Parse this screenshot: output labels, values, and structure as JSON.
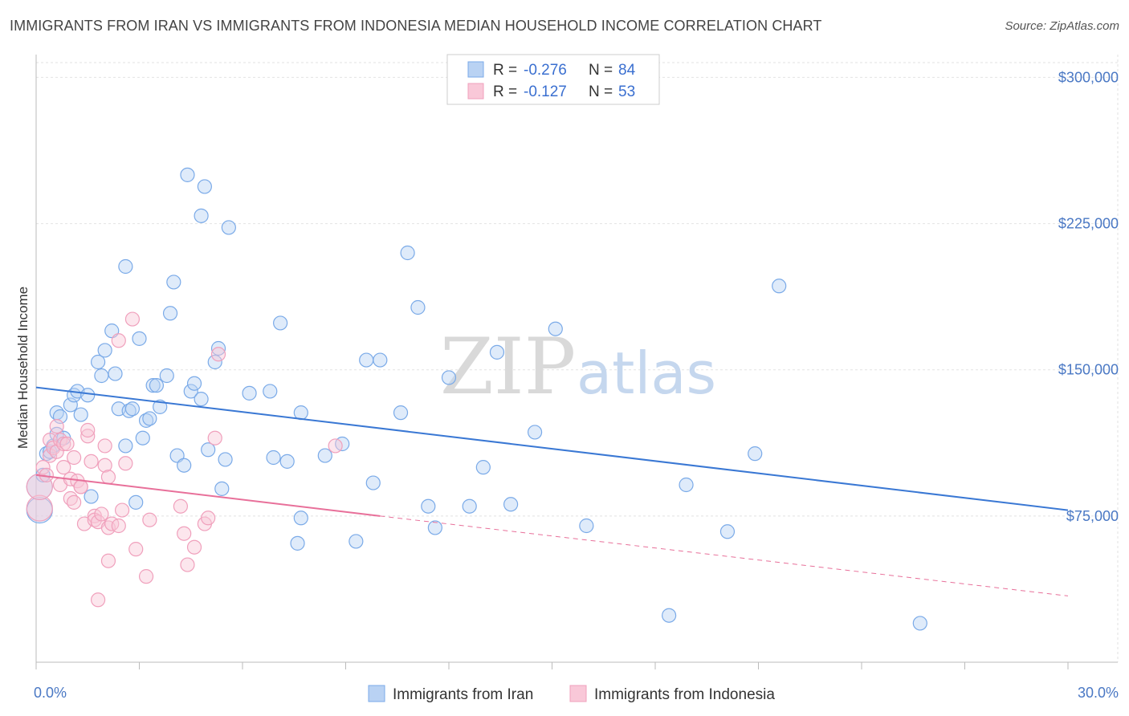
{
  "title": "IMMIGRANTS FROM IRAN VS IMMIGRANTS FROM INDONESIA MEDIAN HOUSEHOLD INCOME CORRELATION CHART",
  "source": "Source: ZipAtlas.com",
  "watermark": {
    "zip": "ZIP",
    "atlas": "atlas"
  },
  "legend": {
    "rows": [
      {
        "r_label": "R =",
        "r_value": "-0.276",
        "n_label": "N =",
        "n_value": "84"
      },
      {
        "r_label": "R =",
        "r_value": "-0.127",
        "n_label": "N =",
        "n_value": "53"
      }
    ]
  },
  "chart_data": {
    "type": "scatter",
    "ylabel": "Median Household Income",
    "xlabel": "",
    "xlim": [
      0,
      30
    ],
    "ylim": [
      0,
      315000
    ],
    "x_tick_labels": [
      {
        "value": 0,
        "label": "0.0%"
      },
      {
        "value": 30,
        "label": "30.0%"
      }
    ],
    "y_tick_labels": [
      {
        "value": 75000,
        "label": "$75,000"
      },
      {
        "value": 150000,
        "label": "$150,000"
      },
      {
        "value": 225000,
        "label": "$225,000"
      },
      {
        "value": 300000,
        "label": "$300,000"
      }
    ],
    "grid": true,
    "legend_position": "top-center",
    "bottom_legend": [
      "Immigrants from Iran",
      "Immigrants from Indonesia"
    ],
    "colors": {
      "iran": "#7aaae8",
      "iran_line": "#3a78d4",
      "indonesia": "#f0a0bc",
      "indonesia_line": "#e8709a"
    },
    "series": [
      {
        "name": "Immigrants from Iran",
        "r": -0.276,
        "n": 84,
        "trend": {
          "x": [
            0,
            30
          ],
          "y": [
            141000,
            78000
          ]
        },
        "points": [
          [
            0.1,
            78000,
            "L"
          ],
          [
            0.1,
            90000,
            "L"
          ],
          [
            0.2,
            96000
          ],
          [
            0.3,
            107000
          ],
          [
            0.4,
            108000
          ],
          [
            0.5,
            111000
          ],
          [
            0.6,
            117000
          ],
          [
            0.8,
            115000
          ],
          [
            0.6,
            128000
          ],
          [
            0.7,
            126000
          ],
          [
            1.0,
            132000
          ],
          [
            1.1,
            137000
          ],
          [
            1.2,
            139000
          ],
          [
            1.5,
            137000
          ],
          [
            1.3,
            127000
          ],
          [
            1.6,
            85000
          ],
          [
            1.8,
            154000
          ],
          [
            1.9,
            147000
          ],
          [
            2.0,
            160000
          ],
          [
            2.2,
            170000
          ],
          [
            2.3,
            148000
          ],
          [
            2.4,
            130000
          ],
          [
            2.6,
            111000
          ],
          [
            2.6,
            203000
          ],
          [
            2.7,
            129000
          ],
          [
            2.8,
            130000
          ],
          [
            2.9,
            82000
          ],
          [
            3.0,
            166000
          ],
          [
            3.1,
            115000
          ],
          [
            3.2,
            124000
          ],
          [
            3.3,
            125000
          ],
          [
            3.4,
            142000
          ],
          [
            3.5,
            142000
          ],
          [
            3.6,
            131000
          ],
          [
            3.8,
            147000
          ],
          [
            3.9,
            179000
          ],
          [
            4.0,
            195000
          ],
          [
            4.1,
            106000
          ],
          [
            4.3,
            101000
          ],
          [
            4.4,
            250000
          ],
          [
            4.5,
            139000
          ],
          [
            4.6,
            143000
          ],
          [
            4.8,
            135000
          ],
          [
            4.9,
            244000
          ],
          [
            4.8,
            229000
          ],
          [
            5.0,
            109000
          ],
          [
            5.2,
            154000
          ],
          [
            5.3,
            161000
          ],
          [
            5.4,
            89000
          ],
          [
            5.5,
            104000
          ],
          [
            5.6,
            223000
          ],
          [
            6.2,
            138000
          ],
          [
            6.8,
            139000
          ],
          [
            6.9,
            105000
          ],
          [
            7.1,
            174000
          ],
          [
            7.3,
            103000
          ],
          [
            7.6,
            61000
          ],
          [
            7.7,
            128000
          ],
          [
            7.7,
            74000
          ],
          [
            8.4,
            106000
          ],
          [
            8.9,
            112000
          ],
          [
            9.3,
            62000
          ],
          [
            9.6,
            155000
          ],
          [
            9.8,
            92000
          ],
          [
            10.0,
            155000
          ],
          [
            10.6,
            128000
          ],
          [
            10.8,
            210000
          ],
          [
            11.1,
            182000
          ],
          [
            11.4,
            80000
          ],
          [
            11.6,
            69000
          ],
          [
            12.0,
            146000
          ],
          [
            12.6,
            80000
          ],
          [
            13.0,
            100000
          ],
          [
            13.4,
            159000
          ],
          [
            13.8,
            81000
          ],
          [
            14.5,
            118000
          ],
          [
            15.1,
            171000
          ],
          [
            16.0,
            70000
          ],
          [
            18.4,
            24000
          ],
          [
            18.9,
            91000
          ],
          [
            20.1,
            67000
          ],
          [
            20.9,
            107000
          ],
          [
            21.6,
            193000
          ],
          [
            25.7,
            20000
          ]
        ]
      },
      {
        "name": "Immigrants from Indonesia",
        "r": -0.127,
        "n": 53,
        "trend": {
          "x": [
            0,
            10
          ],
          "y": [
            96000,
            75000
          ]
        },
        "trend_dashed": {
          "x": [
            10,
            30
          ],
          "y": [
            75000,
            34000
          ]
        },
        "points": [
          [
            0.1,
            79000,
            "L"
          ],
          [
            0.1,
            90000,
            "L"
          ],
          [
            0.2,
            100000
          ],
          [
            0.3,
            96000
          ],
          [
            0.4,
            106000
          ],
          [
            0.4,
            114000
          ],
          [
            0.5,
            110000
          ],
          [
            0.6,
            121000
          ],
          [
            0.6,
            108000
          ],
          [
            0.7,
            114000
          ],
          [
            0.7,
            91000
          ],
          [
            0.8,
            100000
          ],
          [
            0.8,
            112000
          ],
          [
            0.9,
            112000
          ],
          [
            1.0,
            84000
          ],
          [
            1.0,
            94000
          ],
          [
            1.1,
            82000
          ],
          [
            1.1,
            105000
          ],
          [
            1.2,
            93000
          ],
          [
            1.3,
            90000
          ],
          [
            1.3,
            90000
          ],
          [
            1.4,
            71000
          ],
          [
            1.5,
            116000
          ],
          [
            1.5,
            119000
          ],
          [
            1.6,
            103000
          ],
          [
            1.7,
            75000
          ],
          [
            1.7,
            73000
          ],
          [
            1.8,
            72000
          ],
          [
            1.8,
            32000
          ],
          [
            1.9,
            76000
          ],
          [
            2.0,
            111000
          ],
          [
            2.0,
            101000
          ],
          [
            2.1,
            95000
          ],
          [
            2.1,
            69000
          ],
          [
            2.2,
            71000
          ],
          [
            2.1,
            52000
          ],
          [
            2.4,
            70000
          ],
          [
            2.4,
            165000
          ],
          [
            2.5,
            78000
          ],
          [
            2.6,
            102000
          ],
          [
            2.8,
            176000
          ],
          [
            2.9,
            58000
          ],
          [
            3.2,
            44000
          ],
          [
            3.3,
            73000
          ],
          [
            4.2,
            80000
          ],
          [
            4.3,
            66000
          ],
          [
            4.4,
            50000
          ],
          [
            4.6,
            59000
          ],
          [
            4.9,
            71000
          ],
          [
            5.2,
            115000
          ],
          [
            5.3,
            158000
          ],
          [
            8.7,
            111000
          ],
          [
            5.0,
            74000
          ]
        ]
      }
    ]
  }
}
